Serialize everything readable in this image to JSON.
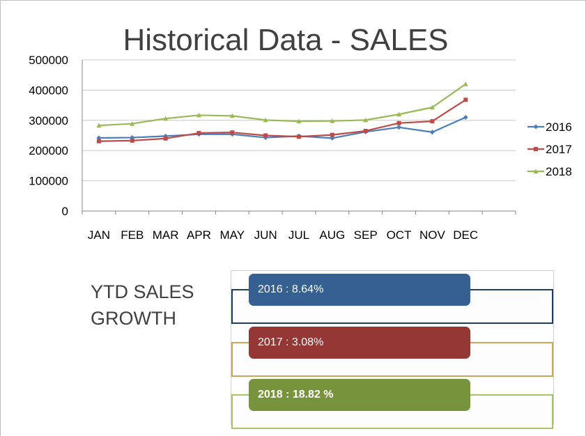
{
  "chart_data": {
    "type": "line",
    "title": "Historical Data - SALES",
    "categories": [
      "JAN",
      "FEB",
      "MAR",
      "APR",
      "MAY",
      "JUN",
      "JUL",
      "AUG",
      "SEP",
      "OCT",
      "NOV",
      "DEC"
    ],
    "ylim": [
      0,
      500000
    ],
    "yticks": [
      "0",
      "100000",
      "200000",
      "300000",
      "400000",
      "500000"
    ],
    "grid": true,
    "legend_position": "right",
    "series": [
      {
        "name": "2016",
        "color": "#4a7ebb",
        "marker": "diamond",
        "values": [
          242000,
          243000,
          248000,
          254000,
          254000,
          243000,
          248000,
          241000,
          262000,
          277000,
          261000,
          310000
        ]
      },
      {
        "name": "2017",
        "color": "#be4b48",
        "marker": "square",
        "values": [
          231000,
          233000,
          240000,
          258000,
          260000,
          250000,
          246000,
          252000,
          265000,
          291000,
          297000,
          368000
        ]
      },
      {
        "name": "2018",
        "color": "#98b954",
        "marker": "triangle",
        "values": [
          283000,
          289000,
          306000,
          317000,
          315000,
          301000,
          297000,
          298000,
          301000,
          320000,
          343000,
          420000
        ]
      }
    ]
  },
  "ytd": {
    "label_line1": "YTD SALES",
    "label_line2": "GROWTH",
    "items": [
      {
        "text": "2016 : 8.64%",
        "fill": "#376092",
        "border": "#1f3d63"
      },
      {
        "text": "2017 : 3.08%",
        "fill": "#953735",
        "border": "#c9a65a"
      },
      {
        "text": "2018 : 18.82 %",
        "fill": "#77933c",
        "border": "#a6c36a"
      }
    ]
  }
}
